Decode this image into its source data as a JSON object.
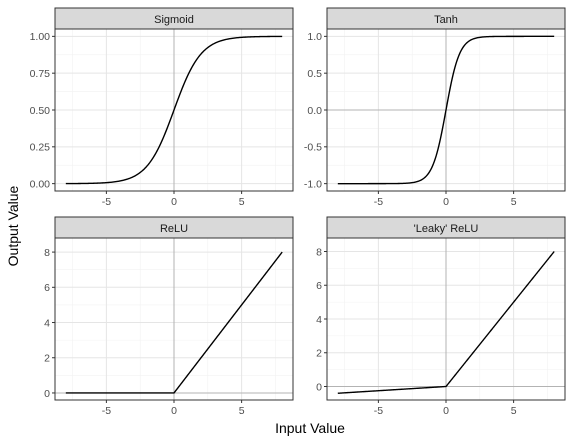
{
  "figure": {
    "xlabel": "Input Value",
    "ylabel": "Output Value"
  },
  "colors": {
    "strip_fill": "#d9d9d9",
    "border": "#333333",
    "grid_major": "#e5e5e5",
    "grid_minor": "#f2f2f2",
    "zero_line": "#b3b3b3",
    "line": "#000000",
    "tick_text": "#4d4d4d"
  },
  "chart_data": [
    {
      "type": "line",
      "title": "Sigmoid",
      "function": "sigmoid",
      "xlim": [
        -8.8,
        8.8
      ],
      "ylim": [
        -0.05,
        1.05
      ],
      "xticks": [
        -5,
        0,
        5
      ],
      "xtick_labels": [
        "-5",
        "0",
        "5"
      ],
      "yticks": [
        0,
        0.25,
        0.5,
        0.75,
        1
      ],
      "ytick_labels": [
        "0.00",
        "0.25",
        "0.50",
        "0.75",
        "1.00"
      ],
      "x": [
        -8,
        -7,
        -6,
        -5,
        -4,
        -3,
        -2,
        -1,
        0,
        1,
        2,
        3,
        4,
        5,
        6,
        7,
        8
      ],
      "y": [
        0.0003,
        0.0009,
        0.0025,
        0.0067,
        0.018,
        0.047,
        0.119,
        0.269,
        0.5,
        0.731,
        0.881,
        0.953,
        0.982,
        0.9933,
        0.9975,
        0.9991,
        0.9997
      ]
    },
    {
      "type": "line",
      "title": "Tanh",
      "function": "tanh",
      "xlim": [
        -8.8,
        8.8
      ],
      "ylim": [
        -1.1,
        1.1
      ],
      "xticks": [
        -5,
        0,
        5
      ],
      "xtick_labels": [
        "-5",
        "0",
        "5"
      ],
      "yticks": [
        -1,
        -0.5,
        0,
        0.5,
        1
      ],
      "ytick_labels": [
        "-1.0",
        "-0.5",
        "0.0",
        "0.5",
        "1.0"
      ],
      "x": [
        -8,
        -4,
        -3,
        -2,
        -1.5,
        -1,
        -0.5,
        0,
        0.5,
        1,
        1.5,
        2,
        3,
        4,
        8
      ],
      "y": [
        -1,
        -0.999,
        -0.995,
        -0.964,
        -0.905,
        -0.762,
        -0.462,
        0,
        0.462,
        0.762,
        0.905,
        0.964,
        0.995,
        0.999,
        1
      ]
    },
    {
      "type": "line",
      "title": "ReLU",
      "function": "relu",
      "xlim": [
        -8.8,
        8.8
      ],
      "ylim": [
        -0.4,
        8.8
      ],
      "xticks": [
        -5,
        0,
        5
      ],
      "xtick_labels": [
        "-5",
        "0",
        "5"
      ],
      "yticks": [
        0,
        2,
        4,
        6,
        8
      ],
      "ytick_labels": [
        "0",
        "2",
        "4",
        "6",
        "8"
      ],
      "x": [
        -8,
        0,
        8
      ],
      "y": [
        0,
        0,
        8
      ]
    },
    {
      "type": "line",
      "title": "'Leaky' ReLU",
      "function": "leaky_relu",
      "xlim": [
        -8.8,
        8.8
      ],
      "ylim": [
        -0.8,
        8.8
      ],
      "xticks": [
        -5,
        0,
        5
      ],
      "xtick_labels": [
        "-5",
        "0",
        "5"
      ],
      "yticks": [
        0,
        2,
        4,
        6,
        8
      ],
      "ytick_labels": [
        "0",
        "2",
        "4",
        "6",
        "8"
      ],
      "x": [
        -8,
        0,
        8
      ],
      "y": [
        -0.4,
        0,
        8
      ]
    }
  ]
}
